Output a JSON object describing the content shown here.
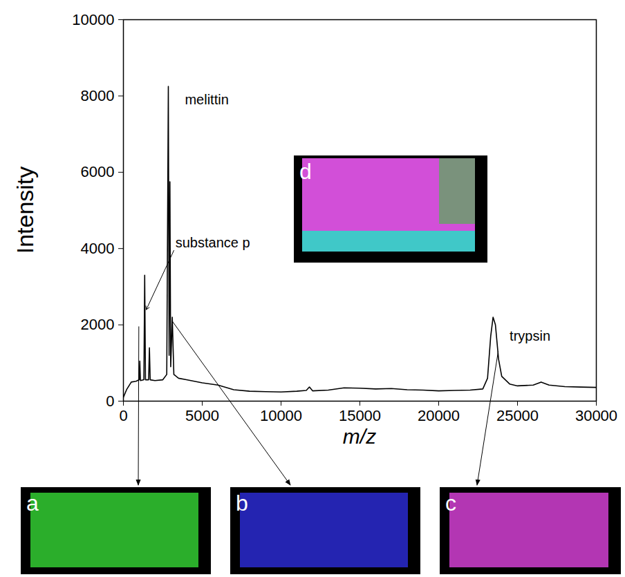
{
  "chart_data": {
    "type": "line",
    "x_label": "m/z",
    "y_label": "Intensity",
    "color": "#000000",
    "xlim": [
      0,
      30000
    ],
    "xticks": [
      0,
      5000,
      10000,
      15000,
      20000,
      25000,
      30000
    ],
    "ylim": [
      0,
      10000
    ],
    "yticks": [
      0,
      2000,
      4000,
      6000,
      8000,
      10000
    ],
    "x": [
      0,
      200,
      500,
      800,
      1000,
      1040,
      1080,
      1300,
      1350,
      1400,
      1600,
      1650,
      1700,
      2000,
      2500,
      2750,
      2850,
      2900,
      2950,
      3000,
      3100,
      3200,
      3500,
      4000,
      5000,
      6000,
      7000,
      8000,
      9000,
      10000,
      11000,
      11600,
      11800,
      12000,
      13000,
      14000,
      15000,
      16000,
      17000,
      18000,
      19000,
      20000,
      21000,
      22000,
      22800,
      23100,
      23300,
      23450,
      23600,
      23800,
      24000,
      24500,
      25000,
      26000,
      26500,
      27000,
      28000,
      29000,
      30000
    ],
    "values": [
      100,
      300,
      500,
      520,
      560,
      1050,
      540,
      560,
      3300,
      560,
      560,
      1400,
      560,
      540,
      560,
      700,
      8250,
      1200,
      5750,
      900,
      2200,
      700,
      600,
      560,
      480,
      420,
      300,
      260,
      250,
      240,
      260,
      280,
      370,
      270,
      290,
      350,
      340,
      320,
      330,
      300,
      290,
      270,
      280,
      290,
      320,
      600,
      1700,
      2200,
      2000,
      1100,
      650,
      450,
      400,
      420,
      500,
      420,
      380,
      370,
      360
    ],
    "annotations": [
      {
        "text": "melittin",
        "x": 3900,
        "y": 7900
      },
      {
        "text": "substance p",
        "x": 3300,
        "y": 4150,
        "arrow_from": [
          3200,
          3950
        ],
        "arrow_to": [
          1450,
          2400
        ]
      },
      {
        "text": "trypsin",
        "x": 24500,
        "y": 1700
      }
    ],
    "inset": {
      "label": "d",
      "colors": [
        "#d24fd8",
        "#40c8c8",
        "#3fbf3f"
      ]
    },
    "panels": [
      {
        "label": "a",
        "color": "#33cc33",
        "arrow_from": [
          1000,
          1950
        ]
      },
      {
        "label": "b",
        "color": "#2a2ad0",
        "arrow_from": [
          3100,
          2100
        ]
      },
      {
        "label": "c",
        "color": "#d23fd2",
        "arrow_from": [
          23800,
          1300
        ]
      }
    ]
  }
}
